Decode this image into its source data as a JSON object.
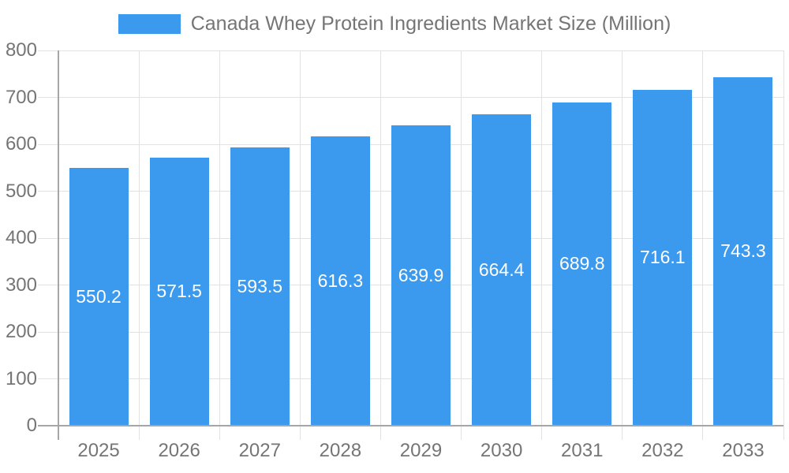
{
  "chart_data": {
    "type": "bar",
    "title": "Canada Whey Protein Ingredients Market Size (Million)",
    "legend": [
      "Canada Whey Protein Ingredients Market Size (Million)"
    ],
    "legend_position": "top",
    "categories": [
      "2025",
      "2026",
      "2027",
      "2028",
      "2029",
      "2030",
      "2031",
      "2032",
      "2033"
    ],
    "values": [
      550.2,
      571.5,
      593.5,
      616.3,
      639.9,
      664.4,
      689.8,
      716.1,
      743.3
    ],
    "xlabel": "",
    "ylabel": "",
    "ylim": [
      0,
      800
    ],
    "ytick_step": 100,
    "ytick_labels": [
      "0",
      "100",
      "200",
      "300",
      "400",
      "500",
      "600",
      "700",
      "800"
    ],
    "grid": true,
    "value_labels_position": "center-of-bar",
    "colors": {
      "bar": "#3b99ee",
      "value_label": "#ffffff",
      "axis_text": "#757575",
      "axis_line": "#a6a6a6",
      "gridline": "#e2e2e2",
      "background": "#ffffff"
    }
  }
}
